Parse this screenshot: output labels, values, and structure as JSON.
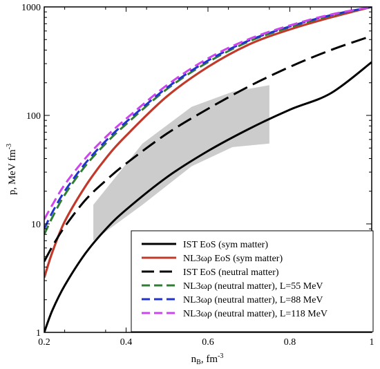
{
  "chart_data": {
    "type": "line",
    "title": "",
    "xlabel": "n",
    "xlabel_sub": "B",
    "xlabel_unit": ", fm",
    "xlabel_sup": "-3",
    "ylabel": "p, MeV fm",
    "ylabel_sup": "-3",
    "xlim": [
      0.2,
      1.0
    ],
    "ylim": [
      1,
      1000
    ],
    "yscale": "log",
    "grid": false,
    "legend_position": "bottom-right",
    "x_ticks": [
      0.2,
      0.4,
      0.6,
      0.8,
      1.0
    ],
    "x_tick_labels": [
      "0.2",
      "0.4",
      "0.6",
      "0.8",
      "1"
    ],
    "y_ticks": [
      1,
      10,
      100,
      1000
    ],
    "y_tick_labels": [
      "1",
      "10",
      "100",
      "1000"
    ],
    "band": {
      "color": "#cccccc",
      "upper": [
        [
          0.32,
          15
        ],
        [
          0.44,
          55
        ],
        [
          0.56,
          120
        ],
        [
          0.66,
          165
        ],
        [
          0.75,
          190
        ]
      ],
      "lower": [
        [
          0.75,
          55
        ],
        [
          0.66,
          51
        ],
        [
          0.56,
          34
        ],
        [
          0.44,
          15
        ],
        [
          0.32,
          7
        ]
      ]
    },
    "series": [
      {
        "name": "IST EoS (sym matter)",
        "color": "#000000",
        "dash": "solid",
        "x": [
          0.2,
          0.22,
          0.25,
          0.3,
          0.35,
          0.4,
          0.5,
          0.6,
          0.7,
          0.8,
          0.9,
          1.0
        ],
        "y": [
          1.0,
          1.6,
          2.7,
          5.3,
          8.9,
          13.5,
          27.0,
          47.0,
          75.0,
          113,
          160,
          310
        ]
      },
      {
        "name": "NL3ωρ EoS (sym matter)",
        "color": "#c0392b",
        "dash": "solid",
        "x": [
          0.2,
          0.22,
          0.25,
          0.3,
          0.35,
          0.4,
          0.5,
          0.6,
          0.7,
          0.8,
          0.9,
          1.0
        ],
        "y": [
          3.2,
          5.5,
          10.5,
          22,
          40,
          65,
          150,
          280,
          450,
          620,
          800,
          1000
        ]
      },
      {
        "name": "IST EoS (neutral matter)",
        "color": "#000000",
        "dash": "longdash",
        "x": [
          0.2,
          0.22,
          0.25,
          0.3,
          0.35,
          0.4,
          0.5,
          0.6,
          0.7,
          0.8,
          0.9,
          1.0
        ],
        "y": [
          4.5,
          6.2,
          9.4,
          16.5,
          25,
          36,
          68,
          115,
          185,
          280,
          400,
          540
        ]
      },
      {
        "name": "NL3ωρ (neutral matter), L=55 MeV",
        "color": "#2e7d32",
        "dash": "dash",
        "x": [
          0.2,
          0.22,
          0.25,
          0.3,
          0.35,
          0.4,
          0.5,
          0.6,
          0.7,
          0.8,
          0.9,
          1.0
        ],
        "y": [
          8.0,
          11.5,
          18.5,
          34,
          55,
          83,
          175,
          310,
          480,
          650,
          830,
          1000
        ]
      },
      {
        "name": "NL3ωρ (neutral matter), L=88 MeV",
        "color": "#2233cc",
        "dash": "dash",
        "x": [
          0.2,
          0.22,
          0.25,
          0.3,
          0.35,
          0.4,
          0.5,
          0.6,
          0.7,
          0.8,
          0.9,
          1.0
        ],
        "y": [
          9.0,
          12.8,
          20,
          36,
          58,
          87,
          180,
          320,
          490,
          660,
          840,
          1000
        ]
      },
      {
        "name": "NL3ωρ (neutral matter), L=118 MeV",
        "color": "#cc44ee",
        "dash": "dash",
        "x": [
          0.2,
          0.22,
          0.25,
          0.3,
          0.35,
          0.4,
          0.5,
          0.6,
          0.7,
          0.8,
          0.9,
          1.0
        ],
        "y": [
          11.0,
          15,
          23,
          40,
          63,
          93,
          190,
          335,
          505,
          675,
          850,
          1000
        ]
      }
    ]
  }
}
